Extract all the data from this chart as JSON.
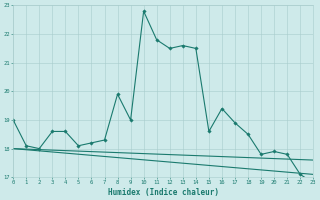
{
  "x": [
    0,
    1,
    2,
    3,
    4,
    5,
    6,
    7,
    8,
    9,
    10,
    11,
    12,
    13,
    14,
    15,
    16,
    17,
    18,
    19,
    20,
    21,
    22,
    23
  ],
  "line1": [
    19.0,
    18.1,
    18.0,
    18.6,
    18.6,
    18.1,
    18.2,
    18.3,
    19.9,
    19.0,
    22.8,
    21.8,
    21.5,
    21.6,
    21.5,
    18.6,
    19.4,
    18.9,
    18.5,
    17.8,
    17.9,
    17.8,
    17.1,
    16.8
  ],
  "trend1_x": [
    0,
    23
  ],
  "trend1_y": [
    18.0,
    17.6
  ],
  "trend2_x": [
    0,
    23
  ],
  "trend2_y": [
    18.0,
    17.1
  ],
  "bg_color": "#ceeaea",
  "line_color": "#1a7a6e",
  "grid_color": "#a8cccc",
  "xlabel": "Humidex (Indice chaleur)",
  "ylim": [
    17,
    23
  ],
  "xlim": [
    0,
    23
  ],
  "yticks": [
    17,
    18,
    19,
    20,
    21,
    22,
    23
  ],
  "xticks": [
    0,
    1,
    2,
    3,
    4,
    5,
    6,
    7,
    8,
    9,
    10,
    11,
    12,
    13,
    14,
    15,
    16,
    17,
    18,
    19,
    20,
    21,
    22,
    23
  ]
}
